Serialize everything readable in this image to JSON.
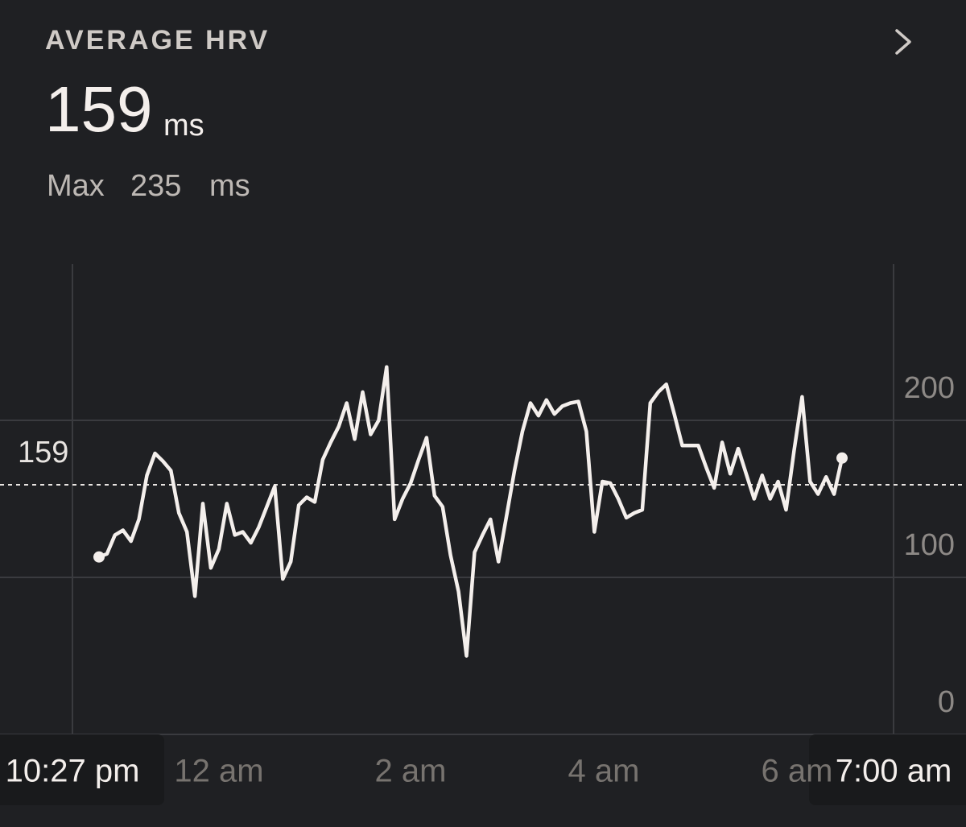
{
  "chart_data": {
    "type": "line",
    "title": "AVERAGE HRV",
    "average": 159,
    "unit": "ms",
    "max_label": "Max",
    "max": 235,
    "x_labels": [
      "10:27 pm",
      "12 am",
      "2 am",
      "4 am",
      "6 am",
      "7:00 am"
    ],
    "values": [
      113,
      115,
      127,
      130,
      123,
      137,
      165,
      179,
      174,
      168,
      141,
      129,
      88,
      147,
      106,
      118,
      147,
      127,
      129,
      122,
      132,
      145,
      158,
      99,
      110,
      146,
      151,
      148,
      175,
      186,
      196,
      211,
      188,
      218,
      191,
      200,
      234,
      137,
      150,
      160,
      175,
      189,
      152,
      145,
      114,
      91,
      50,
      116,
      127,
      137,
      110,
      139,
      168,
      193,
      211,
      203,
      213,
      204,
      209,
      211,
      212,
      193,
      129,
      161,
      160,
      150,
      138,
      141,
      143,
      211,
      218,
      223,
      204,
      184,
      184,
      184,
      170,
      157,
      186,
      166,
      182,
      166,
      150,
      165,
      150,
      161,
      143,
      181,
      215,
      161,
      153,
      164,
      153,
      176
    ],
    "color": "#f4efec",
    "ylim": [
      0,
      300
    ],
    "yticks": [
      0,
      100,
      200
    ],
    "grid": true
  }
}
